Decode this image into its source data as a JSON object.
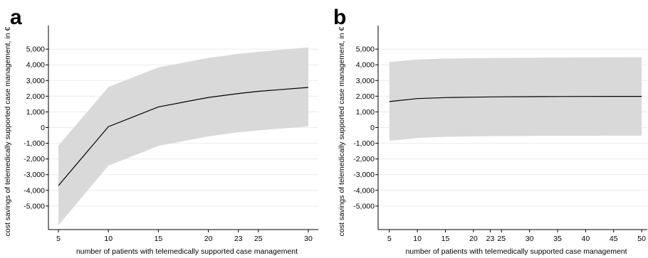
{
  "chart_data": [
    {
      "panel_label": "a",
      "type": "line",
      "xlabel": "number of patients with telemedically supported case management",
      "ylabel": "cost savings of telemedically supported case management, in €",
      "x_ticks": [
        5,
        10,
        15,
        20,
        23,
        25,
        30
      ],
      "y_ticks": [
        -5000,
        -4000,
        -3000,
        -2000,
        -1000,
        0,
        1000,
        2000,
        3000,
        4000,
        5000
      ],
      "y_tick_labels": [
        "-5,000",
        "-4,000",
        "-3,000",
        "-2,000",
        "-1,000",
        "0",
        "1,000",
        "2,000",
        "3,000",
        "4,000",
        "5,000"
      ],
      "xlim": [
        4,
        31
      ],
      "ylim": [
        -6500,
        6500
      ],
      "grid": "horizontal",
      "x": [
        5,
        10,
        15,
        20,
        23,
        25,
        30
      ],
      "series": [
        {
          "values": [
            -3700,
            60,
            1320,
            1920,
            2170,
            2310,
            2560
          ]
        }
      ],
      "band_upper": [
        -1150,
        2580,
        3830,
        4440,
        4700,
        4830,
        5110
      ],
      "band_lower": [
        -6230,
        -2430,
        -1170,
        -560,
        -300,
        -180,
        80
      ],
      "colors": {
        "line": "#000000",
        "band": "#d9d9d9",
        "grid": "#ebebeb"
      }
    },
    {
      "panel_label": "b",
      "type": "line",
      "xlabel": "number of patients with telemedically supported case management",
      "ylabel": "cost savings of telemedically supported case management, in €",
      "x_ticks": [
        5,
        10,
        15,
        20,
        23,
        25,
        30,
        35,
        40,
        45,
        50
      ],
      "y_ticks": [
        -5000,
        -4000,
        -3000,
        -2000,
        -1000,
        0,
        1000,
        2000,
        3000,
        4000,
        5000
      ],
      "y_tick_labels": [
        "-5,000",
        "-4,000",
        "-3,000",
        "-2,000",
        "-1,000",
        "0",
        "1,000",
        "2,000",
        "3,000",
        "4,000",
        "5,000"
      ],
      "xlim": [
        3,
        51
      ],
      "ylim": [
        -6500,
        6500
      ],
      "grid": "horizontal",
      "x": [
        5,
        10,
        15,
        20,
        25,
        30,
        35,
        40,
        45,
        50
      ],
      "series": [
        {
          "values": [
            1660,
            1850,
            1910,
            1940,
            1960,
            1970,
            1980,
            1985,
            1990,
            1990
          ]
        }
      ],
      "band_upper": [
        4180,
        4340,
        4400,
        4420,
        4440,
        4450,
        4460,
        4470,
        4480,
        4490
      ],
      "band_lower": [
        -850,
        -660,
        -590,
        -560,
        -540,
        -530,
        -520,
        -520,
        -510,
        -510
      ],
      "colors": {
        "line": "#000000",
        "band": "#d9d9d9",
        "grid": "#ebebeb"
      }
    }
  ]
}
